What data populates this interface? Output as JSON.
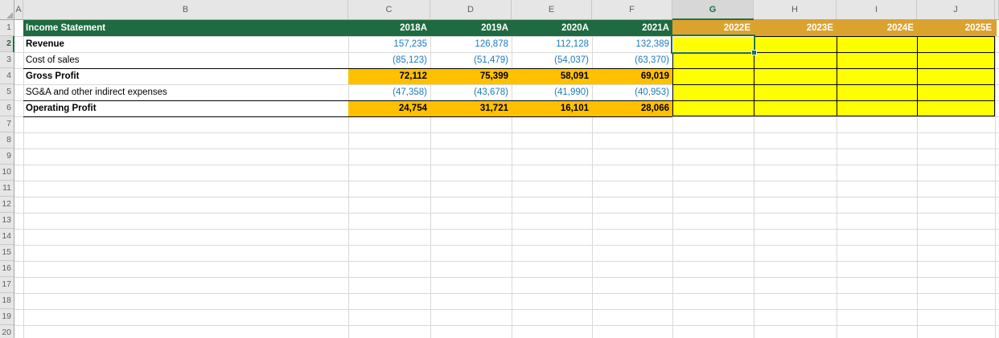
{
  "grid": {
    "column_headers": [
      "A",
      "B",
      "C",
      "D",
      "E",
      "F",
      "G",
      "H",
      "I",
      "J"
    ],
    "row_headers": [
      "1",
      "2",
      "3",
      "4",
      "5",
      "6",
      "7",
      "8",
      "9",
      "10",
      "11",
      "12",
      "13",
      "14",
      "15",
      "16",
      "17",
      "18",
      "19",
      "20"
    ],
    "selected_column": "G",
    "selected_row": "2",
    "active_cell": "G2"
  },
  "colors": {
    "title_green": "#1F6B41",
    "forecast_header_orange": "#DCA22E",
    "subtotal_gold": "#FFC000",
    "forecast_yellow": "#FFFF00",
    "input_blue": "#1B7AC6",
    "selection_green": "#1F7145"
  },
  "statement": {
    "title": "Income Statement",
    "actual_years": [
      "2018A",
      "2019A",
      "2020A",
      "2021A"
    ],
    "forecast_years": [
      "2022E",
      "2023E",
      "2024E",
      "2025E"
    ],
    "rows": [
      {
        "label": "Revenue",
        "emphasis": true,
        "type": "input",
        "values": [
          "157,235",
          "126,878",
          "112,128",
          "132,389"
        ]
      },
      {
        "label": "Cost of sales",
        "emphasis": false,
        "type": "input",
        "values": [
          "(85,123)",
          "(51,479)",
          "(54,037)",
          "(63,370)"
        ]
      },
      {
        "label": "Gross Profit",
        "emphasis": true,
        "type": "subtotal",
        "values": [
          "72,112",
          "75,399",
          "58,091",
          "69,019"
        ]
      },
      {
        "label": "SG&A and other indirect expenses",
        "emphasis": false,
        "type": "input",
        "values": [
          "(47,358)",
          "(43,678)",
          "(41,990)",
          "(40,953)"
        ]
      },
      {
        "label": "Operating Profit",
        "emphasis": true,
        "type": "subtotal",
        "values": [
          "24,754",
          "31,721",
          "16,101",
          "28,066"
        ]
      }
    ],
    "forecast_cells_empty": true
  }
}
